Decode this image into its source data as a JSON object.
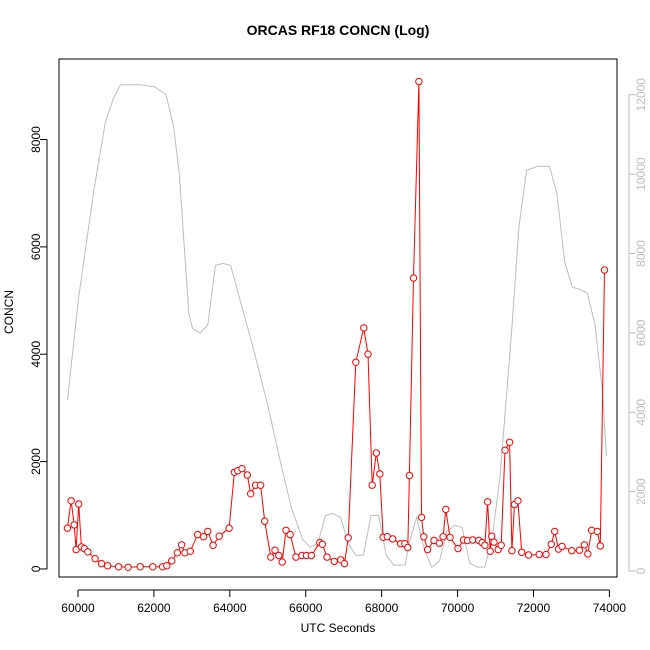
{
  "chart_data": {
    "type": "line",
    "title": "ORCAS RF18 CONCN (Log)",
    "xlabel": "UTC Seconds",
    "ylabel": "CONCN",
    "xlim": [
      59500,
      74200
    ],
    "ylim": [
      -150,
      9500
    ],
    "y2lim": [
      -150,
      12900
    ],
    "x_ticks": [
      60000,
      62000,
      64000,
      66000,
      68000,
      70000,
      72000,
      74000
    ],
    "y_ticks": [
      0,
      2000,
      4000,
      6000,
      8000
    ],
    "y2_ticks": [
      0,
      2000,
      4000,
      6000,
      8000,
      10000,
      12000
    ],
    "grid": false,
    "colors": {
      "primary": "#ff0000",
      "secondary": "#bebebe",
      "axis": "#000000"
    },
    "series": [
      {
        "axis": "left",
        "style": "line+circle",
        "points": [
          [
            59720,
            760
          ],
          [
            59820,
            1270
          ],
          [
            59900,
            820
          ],
          [
            59950,
            360
          ],
          [
            60020,
            1210
          ],
          [
            60090,
            410
          ],
          [
            60170,
            380
          ],
          [
            60260,
            320
          ],
          [
            60450,
            190
          ],
          [
            60620,
            100
          ],
          [
            60780,
            60
          ],
          [
            61070,
            40
          ],
          [
            61320,
            30
          ],
          [
            61640,
            40
          ],
          [
            61970,
            40
          ],
          [
            62230,
            40
          ],
          [
            62340,
            60
          ],
          [
            62470,
            150
          ],
          [
            62620,
            300
          ],
          [
            62730,
            450
          ],
          [
            62820,
            300
          ],
          [
            62960,
            330
          ],
          [
            63150,
            640
          ],
          [
            63310,
            600
          ],
          [
            63420,
            700
          ],
          [
            63560,
            440
          ],
          [
            63720,
            610
          ],
          [
            63980,
            760
          ],
          [
            64120,
            1800
          ],
          [
            64210,
            1830
          ],
          [
            64320,
            1870
          ],
          [
            64460,
            1750
          ],
          [
            64550,
            1400
          ],
          [
            64680,
            1560
          ],
          [
            64810,
            1560
          ],
          [
            64920,
            890
          ],
          [
            65080,
            220
          ],
          [
            65190,
            350
          ],
          [
            65290,
            250
          ],
          [
            65380,
            130
          ],
          [
            65480,
            720
          ],
          [
            65590,
            640
          ],
          [
            65740,
            220
          ],
          [
            65900,
            250
          ],
          [
            66020,
            250
          ],
          [
            66150,
            250
          ],
          [
            66370,
            490
          ],
          [
            66440,
            460
          ],
          [
            66560,
            220
          ],
          [
            66750,
            140
          ],
          [
            66920,
            170
          ],
          [
            67020,
            100
          ],
          [
            67120,
            580
          ],
          [
            67320,
            3850
          ],
          [
            67530,
            4490
          ],
          [
            67640,
            4000
          ],
          [
            67750,
            1560
          ],
          [
            67860,
            2160
          ],
          [
            67950,
            1770
          ],
          [
            68040,
            590
          ],
          [
            68150,
            600
          ],
          [
            68290,
            560
          ],
          [
            68500,
            470
          ],
          [
            68610,
            470
          ],
          [
            68690,
            400
          ],
          [
            68730,
            1740
          ],
          [
            68840,
            5420
          ],
          [
            68980,
            9080
          ],
          [
            69050,
            960
          ],
          [
            69110,
            600
          ],
          [
            69210,
            360
          ],
          [
            69380,
            530
          ],
          [
            69520,
            480
          ],
          [
            69620,
            600
          ],
          [
            69690,
            1110
          ],
          [
            69800,
            590
          ],
          [
            70010,
            380
          ],
          [
            70160,
            540
          ],
          [
            70260,
            530
          ],
          [
            70400,
            540
          ],
          [
            70560,
            530
          ],
          [
            70650,
            490
          ],
          [
            70720,
            440
          ],
          [
            70790,
            1250
          ],
          [
            70860,
            330
          ],
          [
            70900,
            610
          ],
          [
            70960,
            500
          ],
          [
            71070,
            360
          ],
          [
            71150,
            440
          ],
          [
            71250,
            2210
          ],
          [
            71370,
            2360
          ],
          [
            71430,
            340
          ],
          [
            71500,
            1200
          ],
          [
            71590,
            1270
          ],
          [
            71690,
            310
          ],
          [
            71870,
            260
          ],
          [
            72150,
            270
          ],
          [
            72330,
            270
          ],
          [
            72470,
            460
          ],
          [
            72560,
            700
          ],
          [
            72660,
            370
          ],
          [
            72750,
            420
          ],
          [
            73010,
            340
          ],
          [
            73210,
            350
          ],
          [
            73340,
            450
          ],
          [
            73430,
            280
          ],
          [
            73530,
            720
          ],
          [
            73680,
            700
          ],
          [
            73760,
            430
          ],
          [
            73870,
            5570
          ]
        ]
      },
      {
        "axis": "right",
        "style": "line",
        "points": [
          [
            59720,
            4300
          ],
          [
            60020,
            6900
          ],
          [
            60420,
            9600
          ],
          [
            60720,
            11300
          ],
          [
            60930,
            11900
          ],
          [
            61120,
            12250
          ],
          [
            61620,
            12250
          ],
          [
            62020,
            12200
          ],
          [
            62320,
            12000
          ],
          [
            62520,
            11200
          ],
          [
            62670,
            10000
          ],
          [
            62920,
            6500
          ],
          [
            63020,
            6100
          ],
          [
            63220,
            6000
          ],
          [
            63420,
            6200
          ],
          [
            63620,
            7700
          ],
          [
            63820,
            7750
          ],
          [
            64020,
            7700
          ],
          [
            64220,
            7000
          ],
          [
            64620,
            5600
          ],
          [
            65020,
            4100
          ],
          [
            65320,
            2800
          ],
          [
            65620,
            1600
          ],
          [
            65920,
            800
          ],
          [
            66120,
            600
          ],
          [
            66320,
            700
          ],
          [
            66520,
            1400
          ],
          [
            66720,
            1450
          ],
          [
            66920,
            1350
          ],
          [
            67120,
            700
          ],
          [
            67320,
            400
          ],
          [
            67520,
            400
          ],
          [
            67720,
            1400
          ],
          [
            67920,
            1400
          ],
          [
            68120,
            400
          ],
          [
            68320,
            150
          ],
          [
            68620,
            150
          ],
          [
            68720,
            700
          ],
          [
            68920,
            1350
          ],
          [
            69120,
            550
          ],
          [
            69320,
            100
          ],
          [
            69520,
            250
          ],
          [
            69720,
            1000
          ],
          [
            69920,
            1150
          ],
          [
            70120,
            1100
          ],
          [
            70320,
            200
          ],
          [
            70520,
            100
          ],
          [
            70720,
            100
          ],
          [
            70920,
            900
          ],
          [
            71120,
            2400
          ],
          [
            71420,
            6000
          ],
          [
            71620,
            8700
          ],
          [
            71820,
            10100
          ],
          [
            72120,
            10200
          ],
          [
            72420,
            10200
          ],
          [
            72620,
            9500
          ],
          [
            72820,
            7800
          ],
          [
            73020,
            7150
          ],
          [
            73220,
            7100
          ],
          [
            73420,
            7000
          ],
          [
            73620,
            6200
          ],
          [
            73820,
            4500
          ],
          [
            73920,
            2900
          ]
        ]
      }
    ]
  }
}
